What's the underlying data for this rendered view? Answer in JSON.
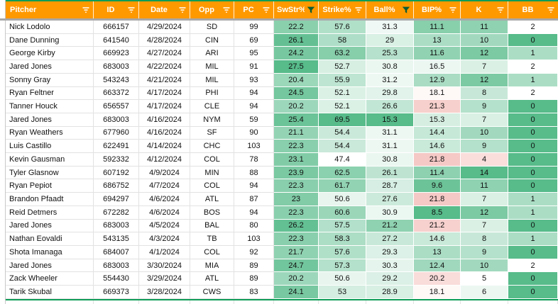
{
  "table": {
    "columns": [
      {
        "key": "pitcher",
        "label": "Pitcher",
        "filter": "inactive",
        "align": "left"
      },
      {
        "key": "id",
        "label": "ID",
        "filter": "inactive",
        "align": "center"
      },
      {
        "key": "date",
        "label": "Date",
        "filter": "inactive",
        "align": "center"
      },
      {
        "key": "opp",
        "label": "Opp",
        "filter": "inactive",
        "align": "center"
      },
      {
        "key": "pc",
        "label": "PC",
        "filter": "inactive",
        "align": "center"
      },
      {
        "key": "swstr",
        "label": "SwStr%",
        "filter": "active",
        "align": "center"
      },
      {
        "key": "strike",
        "label": "Strike%",
        "filter": "inactive",
        "align": "center"
      },
      {
        "key": "ball",
        "label": "Ball%",
        "filter": "active",
        "align": "center"
      },
      {
        "key": "bip",
        "label": "BIP%",
        "filter": "inactive",
        "align": "center"
      },
      {
        "key": "k",
        "label": "K",
        "filter": "inactive",
        "align": "center"
      },
      {
        "key": "bb",
        "label": "BB",
        "filter": "inactive",
        "align": "center"
      }
    ],
    "rows": [
      {
        "pitcher": "Nick Lodolo",
        "id": "666157",
        "date": "4/29/2024",
        "opp": "SD",
        "pc": "99",
        "swstr": "22.2",
        "strike": "57.6",
        "ball": "31.3",
        "bip": "11.1",
        "k": "11",
        "bb": "2"
      },
      {
        "pitcher": "Dane Dunning",
        "id": "641540",
        "date": "4/28/2024",
        "opp": "CIN",
        "pc": "69",
        "swstr": "26.1",
        "strike": "58",
        "ball": "29",
        "bip": "13",
        "k": "10",
        "bb": "0"
      },
      {
        "pitcher": "George Kirby",
        "id": "669923",
        "date": "4/27/2024",
        "opp": "ARI",
        "pc": "95",
        "swstr": "24.2",
        "strike": "63.2",
        "ball": "25.3",
        "bip": "11.6",
        "k": "12",
        "bb": "1"
      },
      {
        "pitcher": "Jared Jones",
        "id": "683003",
        "date": "4/22/2024",
        "opp": "MIL",
        "pc": "91",
        "swstr": "27.5",
        "strike": "52.7",
        "ball": "30.8",
        "bip": "16.5",
        "k": "7",
        "bb": "2"
      },
      {
        "pitcher": "Sonny Gray",
        "id": "543243",
        "date": "4/21/2024",
        "opp": "MIL",
        "pc": "93",
        "swstr": "20.4",
        "strike": "55.9",
        "ball": "31.2",
        "bip": "12.9",
        "k": "12",
        "bb": "1"
      },
      {
        "pitcher": "Ryan Feltner",
        "id": "663372",
        "date": "4/17/2024",
        "opp": "PHI",
        "pc": "94",
        "swstr": "24.5",
        "strike": "52.1",
        "ball": "29.8",
        "bip": "18.1",
        "k": "8",
        "bb": "2"
      },
      {
        "pitcher": "Tanner Houck",
        "id": "656557",
        "date": "4/17/2024",
        "opp": "CLE",
        "pc": "94",
        "swstr": "20.2",
        "strike": "52.1",
        "ball": "26.6",
        "bip": "21.3",
        "k": "9",
        "bb": "0"
      },
      {
        "pitcher": "Jared Jones",
        "id": "683003",
        "date": "4/16/2024",
        "opp": "NYM",
        "pc": "59",
        "swstr": "25.4",
        "strike": "69.5",
        "ball": "15.3",
        "bip": "15.3",
        "k": "7",
        "bb": "0"
      },
      {
        "pitcher": "Ryan Weathers",
        "id": "677960",
        "date": "4/16/2024",
        "opp": "SF",
        "pc": "90",
        "swstr": "21.1",
        "strike": "54.4",
        "ball": "31.1",
        "bip": "14.4",
        "k": "10",
        "bb": "0"
      },
      {
        "pitcher": "Luis Castillo",
        "id": "622491",
        "date": "4/14/2024",
        "opp": "CHC",
        "pc": "103",
        "swstr": "22.3",
        "strike": "54.4",
        "ball": "31.1",
        "bip": "14.6",
        "k": "9",
        "bb": "0"
      },
      {
        "pitcher": "Kevin Gausman",
        "id": "592332",
        "date": "4/12/2024",
        "opp": "COL",
        "pc": "78",
        "swstr": "23.1",
        "strike": "47.4",
        "ball": "30.8",
        "bip": "21.8",
        "k": "4",
        "bb": "0"
      },
      {
        "pitcher": "Tyler Glasnow",
        "id": "607192",
        "date": "4/9/2024",
        "opp": "MIN",
        "pc": "88",
        "swstr": "23.9",
        "strike": "62.5",
        "ball": "26.1",
        "bip": "11.4",
        "k": "14",
        "bb": "0"
      },
      {
        "pitcher": "Ryan Pepiot",
        "id": "686752",
        "date": "4/7/2024",
        "opp": "COL",
        "pc": "94",
        "swstr": "22.3",
        "strike": "61.7",
        "ball": "28.7",
        "bip": "9.6",
        "k": "11",
        "bb": "0"
      },
      {
        "pitcher": "Brandon Pfaadt",
        "id": "694297",
        "date": "4/6/2024",
        "opp": "ATL",
        "pc": "87",
        "swstr": "23",
        "strike": "50.6",
        "ball": "27.6",
        "bip": "21.8",
        "k": "7",
        "bb": "1"
      },
      {
        "pitcher": "Reid Detmers",
        "id": "672282",
        "date": "4/6/2024",
        "opp": "BOS",
        "pc": "94",
        "swstr": "22.3",
        "strike": "60.6",
        "ball": "30.9",
        "bip": "8.5",
        "k": "12",
        "bb": "1"
      },
      {
        "pitcher": "Jared Jones",
        "id": "683003",
        "date": "4/5/2024",
        "opp": "BAL",
        "pc": "80",
        "swstr": "26.2",
        "strike": "57.5",
        "ball": "21.2",
        "bip": "21.2",
        "k": "7",
        "bb": "0"
      },
      {
        "pitcher": "Nathan Eovaldi",
        "id": "543135",
        "date": "4/3/2024",
        "opp": "TB",
        "pc": "103",
        "swstr": "22.3",
        "strike": "58.3",
        "ball": "27.2",
        "bip": "14.6",
        "k": "8",
        "bb": "1"
      },
      {
        "pitcher": "Shota Imanaga",
        "id": "684007",
        "date": "4/1/2024",
        "opp": "COL",
        "pc": "92",
        "swstr": "21.7",
        "strike": "57.6",
        "ball": "29.3",
        "bip": "13",
        "k": "9",
        "bb": "0"
      },
      {
        "pitcher": "Jared Jones",
        "id": "683003",
        "date": "3/30/2024",
        "opp": "MIA",
        "pc": "89",
        "swstr": "24.7",
        "strike": "57.3",
        "ball": "30.3",
        "bip": "12.4",
        "k": "10",
        "bb": "2"
      },
      {
        "pitcher": "Zack Wheeler",
        "id": "554430",
        "date": "3/29/2024",
        "opp": "ATL",
        "pc": "89",
        "swstr": "20.2",
        "strike": "50.6",
        "ball": "29.2",
        "bip": "20.2",
        "k": "5",
        "bb": "0"
      },
      {
        "pitcher": "Tarik Skubal",
        "id": "669373",
        "date": "3/28/2024",
        "opp": "CWS",
        "pc": "83",
        "swstr": "24.1",
        "strike": "53",
        "ball": "28.9",
        "bip": "18.1",
        "k": "6",
        "bb": "0"
      }
    ]
  },
  "formatting": {
    "colors": {
      "header_bg": "#ff9900",
      "header_text": "#ffffff",
      "scale_green": "#57bb8a",
      "scale_red": "#e67c73",
      "scale_white": "#ffffff",
      "range_border": "#0f9d58",
      "gridline": "#e2e2e2",
      "frozen_divider": "#a8a8a8",
      "active_filter_icon": "#0b5c35"
    },
    "scales": {
      "swstr": {
        "type": "2color",
        "white_at": 10,
        "green_at": 27.5
      },
      "strike": {
        "type": "2color",
        "white_at": 47.4,
        "green_at": 69.5
      },
      "ball": {
        "type": "2color",
        "white_at": 33,
        "green_at": 15.3
      },
      "bip": {
        "type": "3color",
        "green_at": 8.5,
        "white_at": 17.5,
        "red_at": 28
      },
      "k": {
        "type": "3color",
        "green_at": 14,
        "white_at": 5,
        "red_at": 1
      },
      "bb": {
        "type": "2color",
        "white_at": 2,
        "green_at": 0
      }
    }
  }
}
